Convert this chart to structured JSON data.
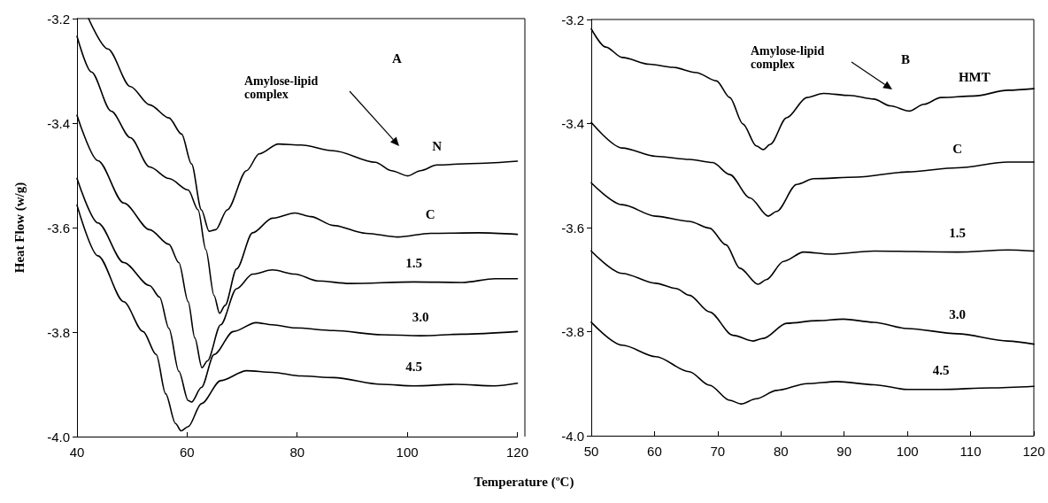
{
  "chart_data": [
    {
      "type": "line",
      "xlabel": "Temperature (ºC)",
      "ylabel": "Heat Flow (w/g)",
      "xlim": [
        40,
        120
      ],
      "xticks": [
        40,
        60,
        80,
        100,
        120
      ],
      "ylim": [
        -4.0,
        -3.2
      ],
      "yticks": [
        {
          "value": -4.0,
          "label": "-4.0"
        },
        -3.8,
        -3.6,
        -3.4,
        -3.2
      ],
      "grid": false,
      "legend": false,
      "marker": "none",
      "line_style": "solid",
      "annotations": [
        "A",
        "Amylose-lipid\ncomplex"
      ],
      "series": [
        {
          "name": "N",
          "color": "#000000",
          "x": [
            42.1,
            45.6,
            49.7,
            53.2,
            56.7,
            59.0,
            60.8,
            62.6,
            64.0,
            65.2,
            67.3,
            70.8,
            73.1,
            76.6,
            80.7,
            86.6,
            94.2,
            97.1,
            100.1,
            102.4,
            105.4,
            113,
            120
          ],
          "values": [
            -3.2,
            -3.258,
            -3.33,
            -3.365,
            -3.39,
            -3.421,
            -3.478,
            -3.566,
            -3.607,
            -3.604,
            -3.566,
            -3.491,
            -3.459,
            -3.44,
            -3.442,
            -3.453,
            -3.475,
            -3.491,
            -3.501,
            -3.491,
            -3.48,
            -3.477,
            -3.473
          ]
        },
        {
          "name": "C",
          "color": "#000000",
          "x": [
            40,
            42.6,
            46.2,
            49.7,
            53.2,
            56.7,
            60.2,
            62.0,
            63.4,
            64.9,
            65.9,
            66.9,
            69.0,
            71.9,
            75.5,
            79.6,
            82.5,
            86.6,
            92.5,
            98.3,
            104.2,
            113,
            120
          ],
          "values": [
            -3.234,
            -3.302,
            -3.377,
            -3.428,
            -3.484,
            -3.506,
            -3.528,
            -3.566,
            -3.642,
            -3.73,
            -3.764,
            -3.749,
            -3.679,
            -3.61,
            -3.582,
            -3.572,
            -3.579,
            -3.596,
            -3.611,
            -3.618,
            -3.611,
            -3.61,
            -3.613
          ]
        },
        {
          "name": "1.5",
          "color": "#000000",
          "x": [
            40,
            43.8,
            48.5,
            53.2,
            56.7,
            58.5,
            60.2,
            61.4,
            62.7,
            63.7,
            66.1,
            69.0,
            71.9,
            75.5,
            79.6,
            83.7,
            89.5,
            101.2,
            110,
            115.9,
            120
          ],
          "values": [
            -3.385,
            -3.472,
            -3.553,
            -3.604,
            -3.632,
            -3.667,
            -3.742,
            -3.811,
            -3.868,
            -3.855,
            -3.786,
            -3.717,
            -3.689,
            -3.681,
            -3.689,
            -3.702,
            -3.707,
            -3.704,
            -3.705,
            -3.698,
            -3.698
          ]
        },
        {
          "name": "3.0",
          "color": "#000000",
          "x": [
            40,
            43.8,
            48.5,
            53.2,
            55.0,
            56.7,
            58.5,
            60.2,
            60.8,
            62.6,
            64.9,
            68.4,
            72.5,
            75.5,
            79.6,
            86.6,
            95.4,
            102.4,
            110,
            120
          ],
          "values": [
            -3.506,
            -3.591,
            -3.667,
            -3.711,
            -3.733,
            -3.793,
            -3.875,
            -3.931,
            -3.934,
            -3.906,
            -3.843,
            -3.799,
            -3.782,
            -3.786,
            -3.792,
            -3.797,
            -3.805,
            -3.807,
            -3.804,
            -3.799
          ]
        },
        {
          "name": "4.5",
          "color": "#000000",
          "x": [
            40,
            43.8,
            48.5,
            52,
            54.4,
            56.1,
            57.9,
            58.9,
            60.2,
            62.6,
            66.1,
            70.8,
            75.5,
            80.7,
            86.6,
            95.4,
            101.2,
            108.9,
            115.9,
            120
          ],
          "values": [
            -3.557,
            -3.654,
            -3.742,
            -3.799,
            -3.843,
            -3.918,
            -3.975,
            -3.989,
            -3.981,
            -3.937,
            -3.893,
            -3.874,
            -3.877,
            -3.884,
            -3.887,
            -3.9,
            -3.903,
            -3.9,
            -3.903,
            -3.898
          ]
        }
      ]
    },
    {
      "type": "line",
      "xlim": [
        50,
        120
      ],
      "xticks": [
        50,
        60,
        70,
        80,
        90,
        100,
        110,
        120
      ],
      "ylim": [
        -4.0,
        -3.2
      ],
      "yticks": [
        {
          "value": -4.0,
          "label": "-4.0"
        },
        -3.8,
        -3.6,
        -3.4,
        -3.2
      ],
      "grid": false,
      "legend": false,
      "marker": "none",
      "line_style": "solid",
      "annotations": [
        "B",
        "Amylose-lipid\ncomplex"
      ],
      "series": [
        {
          "name": "HMT",
          "color": "#000000",
          "x": [
            50,
            52.3,
            54.9,
            59.2,
            62.9,
            66.6,
            69.8,
            71.9,
            74.0,
            76.1,
            77.2,
            78.3,
            80.9,
            84.1,
            86.7,
            90.9,
            94.7,
            97.3,
            100.3,
            102.6,
            105.3,
            110.6,
            115.9,
            120
          ],
          "values": [
            -3.218,
            -3.253,
            -3.273,
            -3.286,
            -3.292,
            -3.302,
            -3.318,
            -3.35,
            -3.401,
            -3.443,
            -3.45,
            -3.44,
            -3.389,
            -3.35,
            -3.342,
            -3.346,
            -3.353,
            -3.366,
            -3.376,
            -3.363,
            -3.35,
            -3.347,
            -3.336,
            -3.333
          ]
        },
        {
          "name": "C",
          "color": "#000000",
          "x": [
            50,
            54.9,
            60.2,
            65.5,
            69.2,
            71.9,
            75.1,
            78.0,
            79.3,
            82.5,
            85.2,
            92.0,
            100,
            107.9,
            115.9,
            120
          ],
          "values": [
            -3.398,
            -3.447,
            -3.463,
            -3.469,
            -3.475,
            -3.498,
            -3.543,
            -3.578,
            -3.569,
            -3.517,
            -3.506,
            -3.503,
            -3.493,
            -3.485,
            -3.474,
            -3.474
          ]
        },
        {
          "name": "1.5",
          "color": "#000000",
          "x": [
            50,
            54.9,
            60.2,
            65.5,
            68.7,
            71.3,
            73.5,
            76.4,
            77.7,
            80.4,
            83.6,
            87.8,
            94.7,
            107.9,
            115.9,
            120
          ],
          "values": [
            -3.514,
            -3.556,
            -3.578,
            -3.588,
            -3.601,
            -3.633,
            -3.678,
            -3.709,
            -3.7,
            -3.665,
            -3.647,
            -3.651,
            -3.645,
            -3.647,
            -3.643,
            -3.645
          ]
        },
        {
          "name": "3.0",
          "color": "#000000",
          "x": [
            50,
            54.9,
            60.2,
            63.4,
            65.5,
            68.7,
            72.4,
            75.6,
            77.2,
            80.9,
            85.7,
            89.9,
            94.7,
            100,
            107.9,
            115.9,
            120
          ],
          "values": [
            -3.645,
            -3.688,
            -3.707,
            -3.717,
            -3.73,
            -3.762,
            -3.807,
            -3.818,
            -3.813,
            -3.784,
            -3.779,
            -3.776,
            -3.782,
            -3.794,
            -3.804,
            -3.818,
            -3.824
          ]
        },
        {
          "name": "4.5",
          "color": "#000000",
          "x": [
            50,
            54.9,
            60.2,
            65.5,
            68.7,
            71.9,
            73.7,
            76.1,
            79.3,
            84.1,
            88.9,
            94.7,
            100,
            105.3,
            113.2,
            120
          ],
          "values": [
            -3.782,
            -3.826,
            -3.848,
            -3.877,
            -3.903,
            -3.932,
            -3.939,
            -3.929,
            -3.913,
            -3.9,
            -3.896,
            -3.902,
            -3.911,
            -3.911,
            -3.908,
            -3.905
          ]
        }
      ]
    }
  ]
}
